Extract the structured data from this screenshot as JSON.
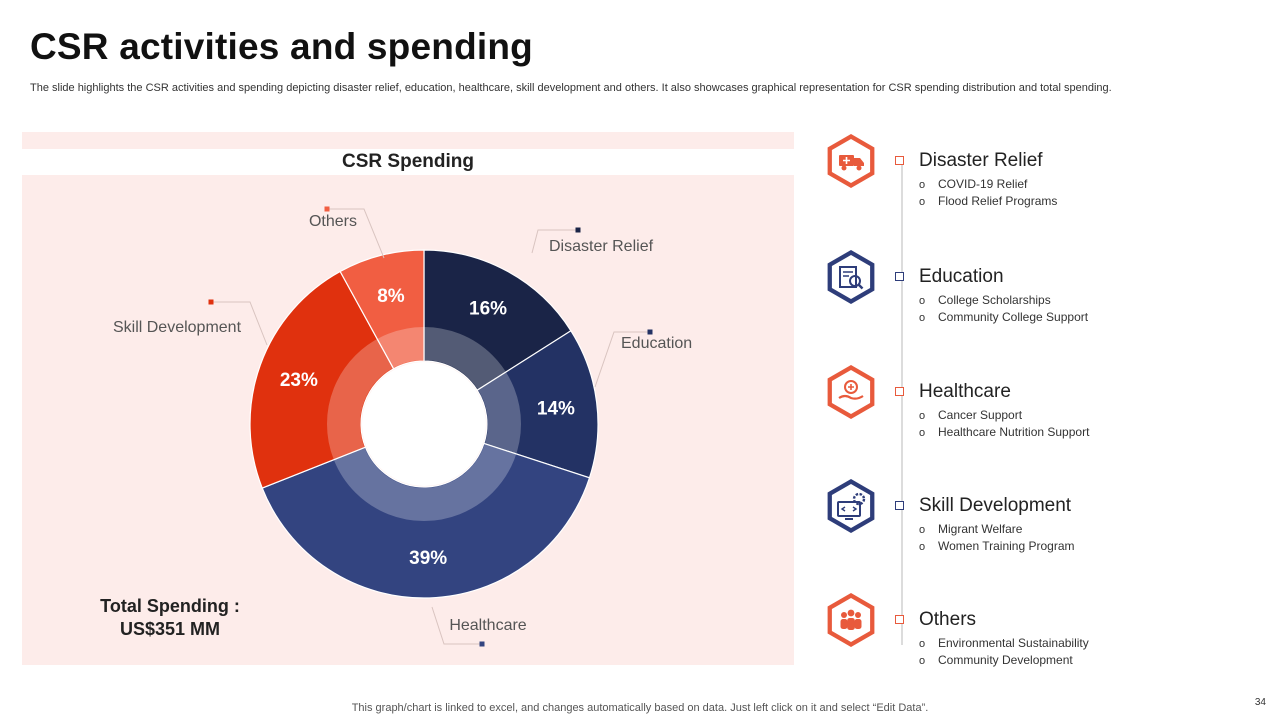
{
  "slide": {
    "title": "CSR activities and spending",
    "subtitle": "The slide highlights the CSR activities and spending depicting disaster relief, education, healthcare, skill development and others. It also showcases graphical representation for CSR spending distribution and total spending.",
    "footer": "This graph/chart is linked to excel,  and changes automatically based on data. Just left click on it and select “Edit Data”.",
    "page_number": "34"
  },
  "total": {
    "label": "Total Spending :",
    "value": "US$351 MM"
  },
  "chart_data": {
    "type": "pie",
    "title": "CSR Spending",
    "categories": [
      "Disaster Relief",
      "Education",
      "Healthcare",
      "Skill Development",
      "Others"
    ],
    "values": [
      16,
      14,
      39,
      23,
      8
    ],
    "value_labels": [
      "16%",
      "14%",
      "39%",
      "23%",
      "8%"
    ],
    "unit": "%",
    "colors": [
      "#1a2447",
      "#233264",
      "#334480",
      "#e0310e",
      "#f15e42"
    ],
    "legend": "callout-labels"
  },
  "categories_panel": [
    {
      "name": "Disaster Relief",
      "icon": "ambulance-icon",
      "color": "#e85a3c",
      "items": [
        "COVID-19 Relief",
        "Flood Relief Programs"
      ]
    },
    {
      "name": "Education",
      "icon": "book-search-icon",
      "color": "#2e3d7a",
      "items": [
        "College Scholarships",
        "Community College Support"
      ]
    },
    {
      "name": "Healthcare",
      "icon": "care-hand-icon",
      "color": "#e85a3c",
      "items": [
        "Cancer Support",
        "Healthcare Nutrition Support"
      ]
    },
    {
      "name": "Skill Development",
      "icon": "computer-gear-icon",
      "color": "#2e3d7a",
      "items": [
        "Migrant Welfare",
        "Women Training Program"
      ]
    },
    {
      "name": "Others",
      "icon": "people-group-icon",
      "color": "#e85a3c",
      "items": [
        "Environmental Sustainability",
        "Community Development"
      ]
    }
  ]
}
